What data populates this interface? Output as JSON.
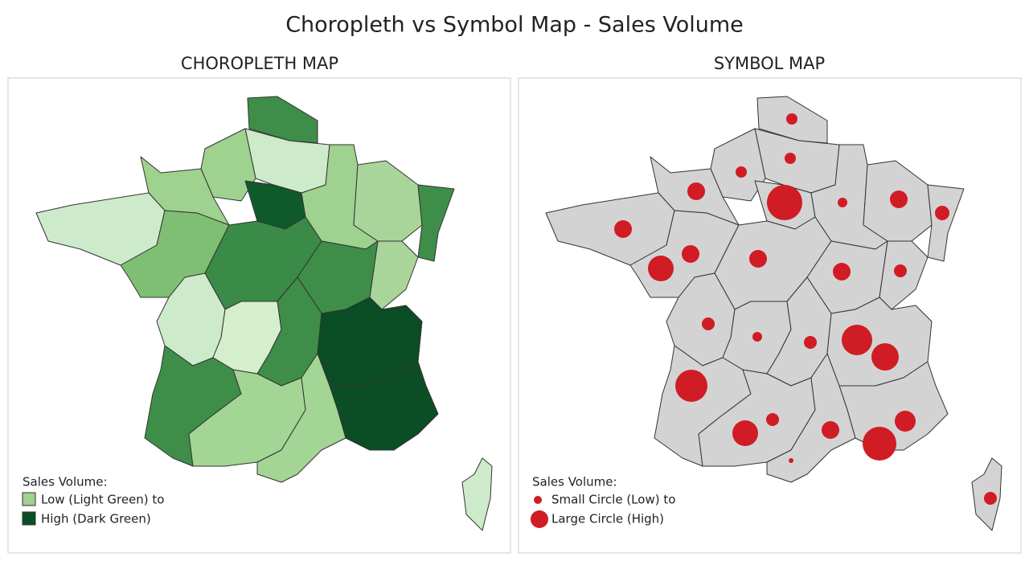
{
  "title": "Choropleth vs Symbol Map - Sales Volume",
  "panels": [
    {
      "title": "CHOROPLETH MAP",
      "legend": {
        "title": "Sales Volume:",
        "items": [
          "Low (Light Green) to",
          "High (Dark Green)"
        ]
      }
    },
    {
      "title": "SYMBOL MAP",
      "legend": {
        "title": "Sales Volume:",
        "items": [
          "Small Circle (Low) to",
          "Large Circle (High)"
        ]
      }
    }
  ]
}
